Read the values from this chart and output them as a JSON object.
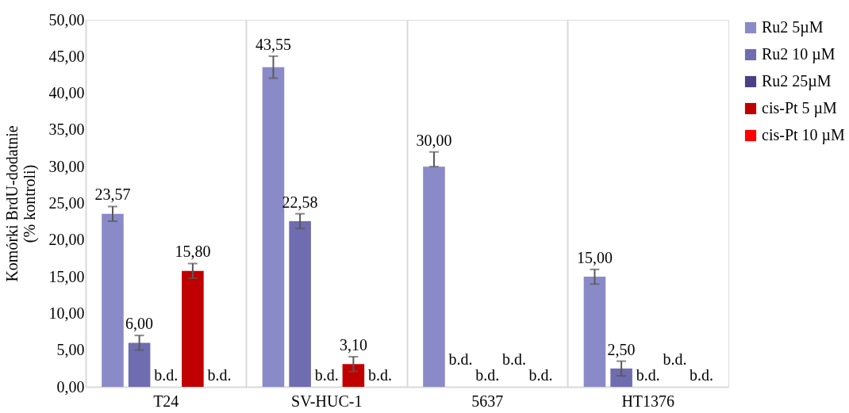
{
  "chart_data": {
    "type": "bar",
    "ylabel": "Komórki BrdU-dodatnie\n(% kontroli)",
    "categories": [
      "T24",
      "SV-HUC-1",
      "5637",
      "HT1376"
    ],
    "series": [
      {
        "name": "Ru2 5µM",
        "color": "#8b8ac8",
        "values": [
          23.57,
          43.55,
          30.0,
          15.0
        ],
        "errors": [
          1.0,
          1.5,
          [
            30.0,
            32.0
          ],
          1.0
        ],
        "value_labels": [
          "23,57",
          "43,55",
          "30,00",
          "15,00"
        ]
      },
      {
        "name": "Ru2 10 µM",
        "color": "#706cb0",
        "values": [
          6.0,
          22.58,
          null,
          2.5
        ],
        "errors": [
          1.0,
          1.0,
          null,
          1.0
        ],
        "value_labels": [
          "6,00",
          "22,58",
          "b.d.",
          "2,50"
        ]
      },
      {
        "name": "Ru2 25µM",
        "color": "#4b3f86",
        "values": [
          null,
          null,
          null,
          null
        ],
        "value_labels": [
          "b.d.",
          "b.d.",
          "b.d.",
          "b.d."
        ]
      },
      {
        "name": "cis-Pt 5 µM",
        "color": "#c00000",
        "values": [
          15.8,
          3.1,
          null,
          null
        ],
        "errors": [
          1.0,
          1.0,
          null,
          null
        ],
        "value_labels": [
          "15,80",
          "3,10",
          "b.d.",
          "b.d."
        ]
      },
      {
        "name": "cis-Pt 10 µM",
        "color": "#ff0000",
        "values": [
          null,
          null,
          null,
          null
        ],
        "value_labels": [
          "b.d.",
          "b.d.",
          "b.d.",
          "b.d."
        ]
      }
    ],
    "ylim": [
      0,
      50
    ],
    "yticks": [
      {
        "value": 0,
        "label": "0,00"
      },
      {
        "value": 5,
        "label": "5,00"
      },
      {
        "value": 10,
        "label": "10,00"
      },
      {
        "value": 15,
        "label": "15,00"
      },
      {
        "value": 20,
        "label": "20,00"
      },
      {
        "value": 25,
        "label": "25,00"
      },
      {
        "value": 30,
        "label": "30,00"
      },
      {
        "value": 35,
        "label": "35,00"
      },
      {
        "value": 40,
        "label": "40,00"
      },
      {
        "value": 45,
        "label": "45,00"
      },
      {
        "value": 50,
        "label": "50,00"
      }
    ],
    "grid": "x",
    "legend": "right"
  }
}
